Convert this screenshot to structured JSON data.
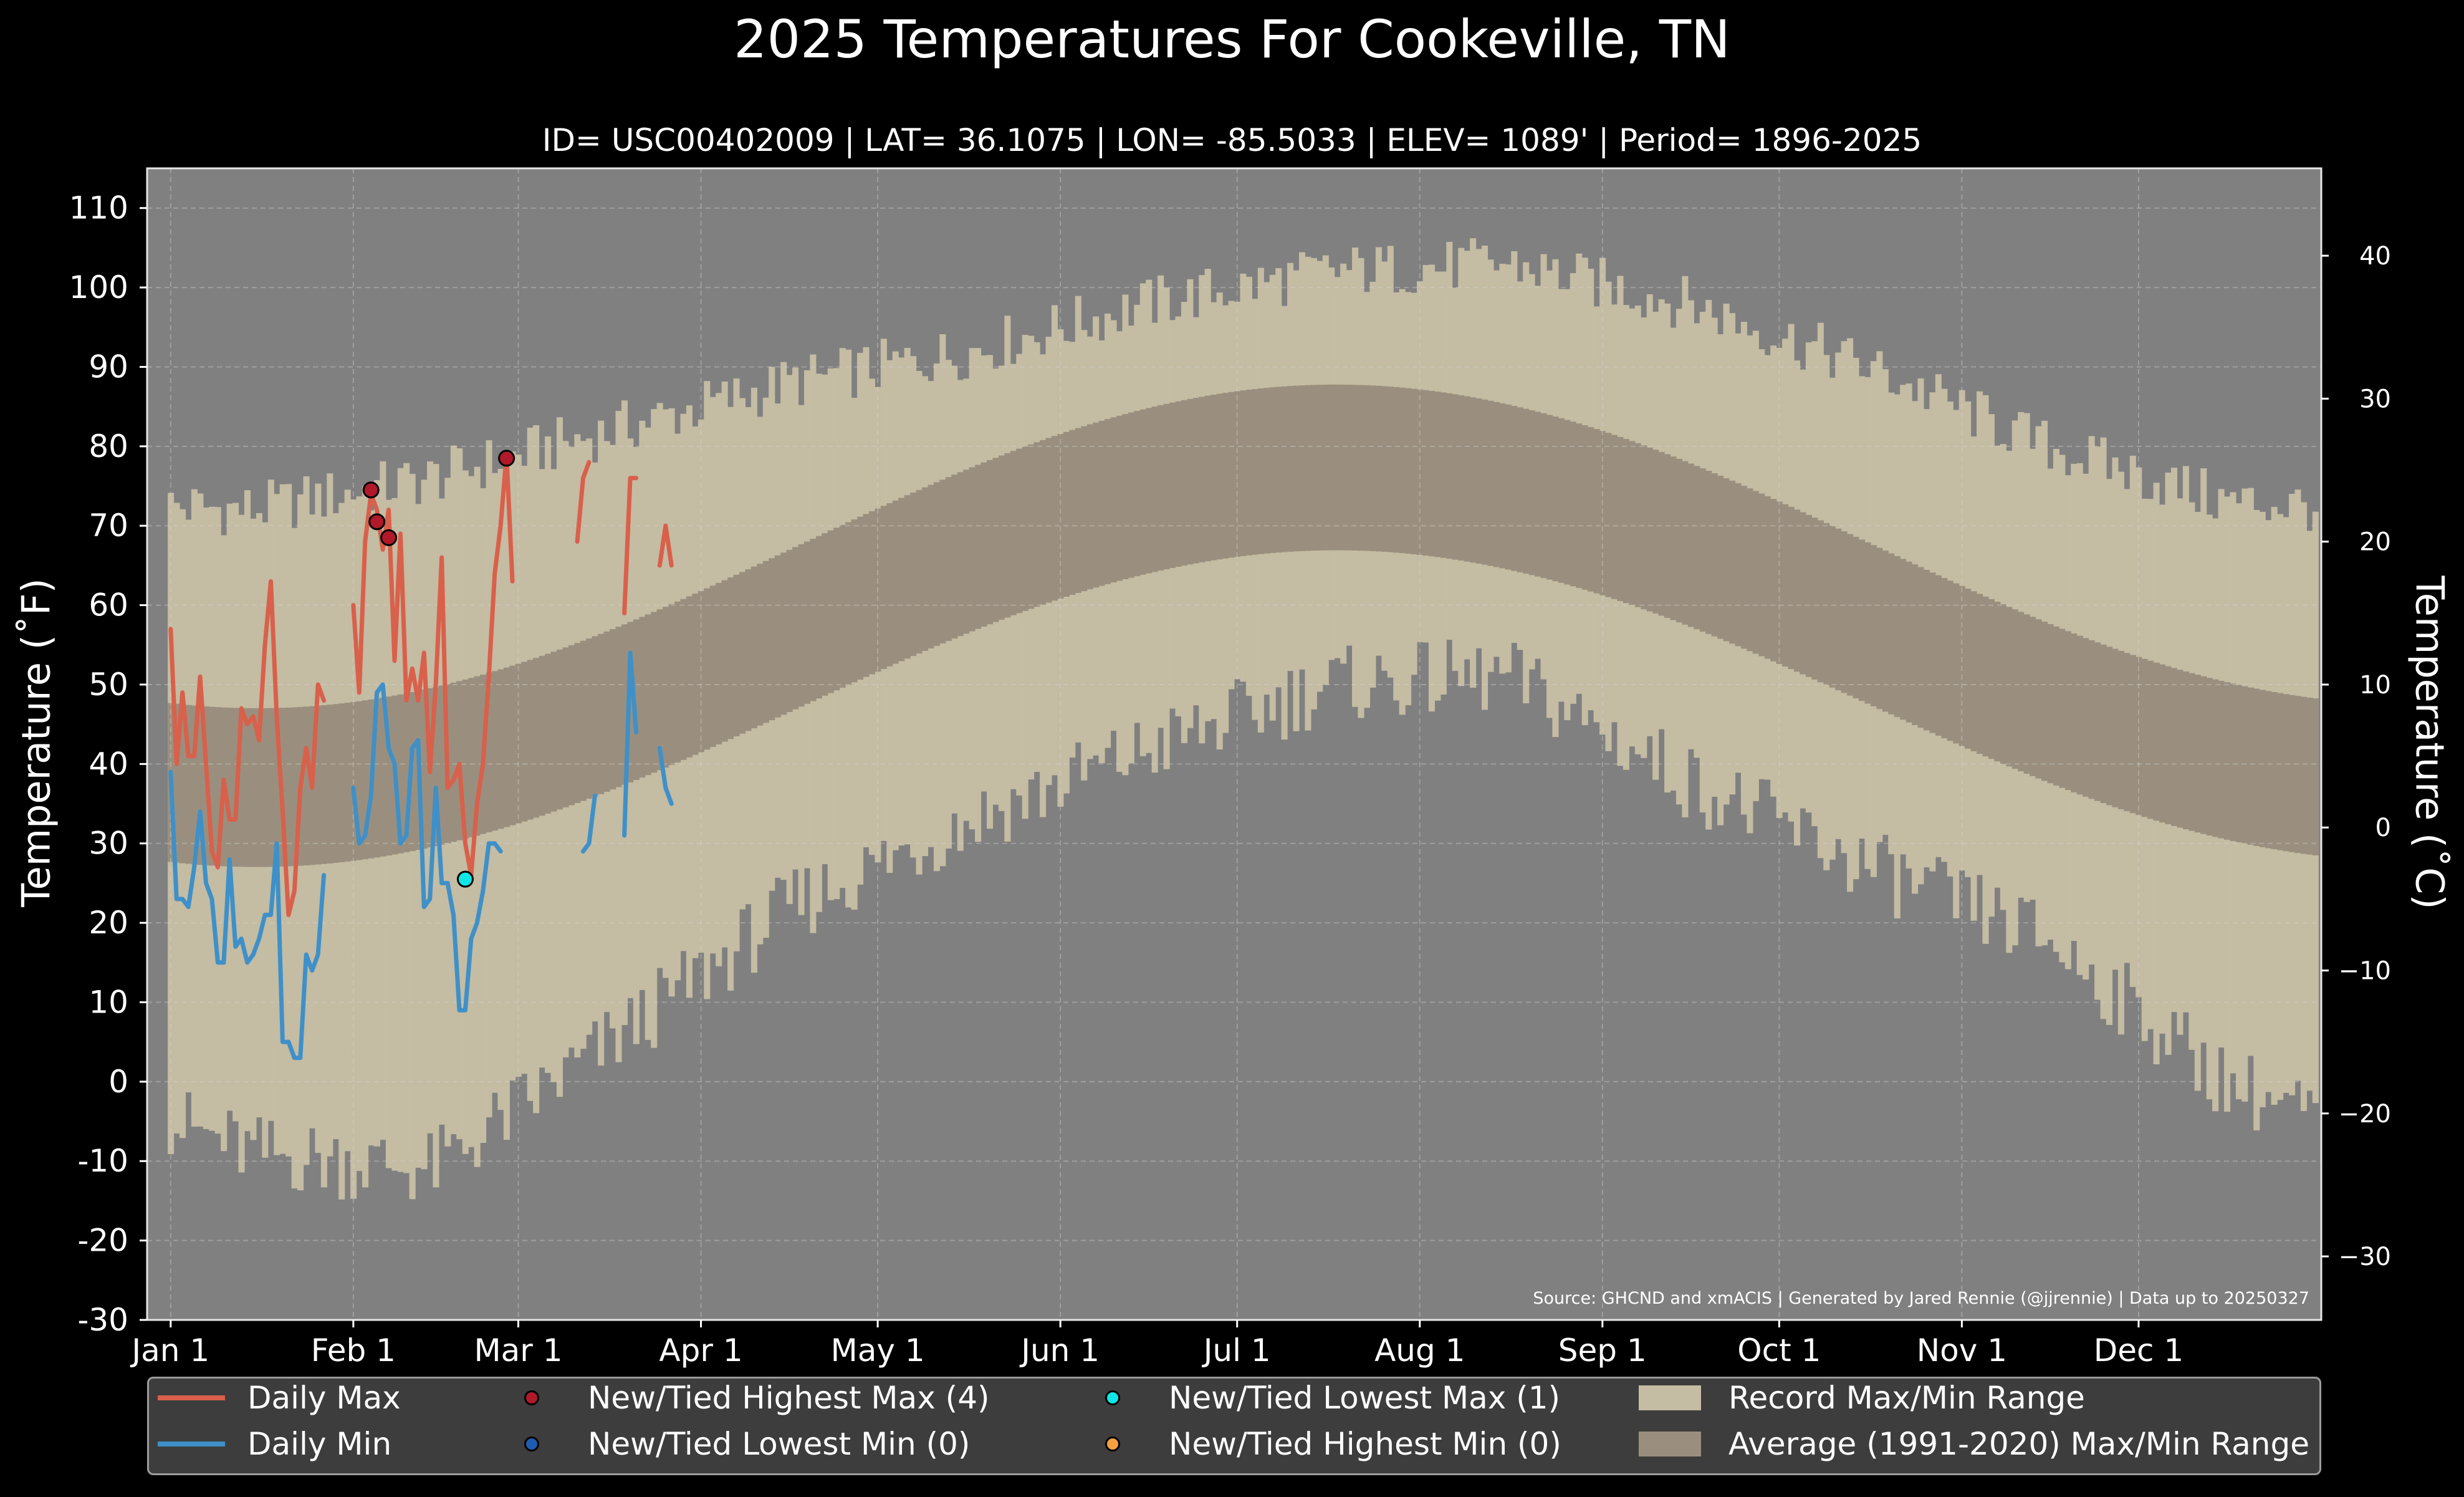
{
  "title": "2025 Temperatures For Cookeville, TN",
  "subtitle": "ID= USC00402009 | LAT= 36.1075 | LON= -85.5033 | ELEV= 1089' | Period= 1896-2025",
  "source_note": "Source: GHCND and xmACIS | Generated by Jared Rennie (@jjrennie) | Data up to 20250327",
  "colors": {
    "background": "#000000",
    "plot_background": "#808080",
    "record_range": "#c4bca3",
    "normal_range": "#9a8f7e",
    "daily_max": "#d9604b",
    "daily_min": "#3f90c8",
    "new_highest_max": "#b0192a",
    "new_lowest_min": "#1f5cb0",
    "new_lowest_max": "#10e6e6",
    "new_highest_min": "#f4a040"
  },
  "legend": {
    "daily_max": "Daily Max",
    "daily_min": "Daily Min",
    "new_highest_max": "New/Tied Highest Max (4)",
    "new_lowest_min": "New/Tied Lowest Min (0)",
    "new_lowest_max": "New/Tied Lowest Max (1)",
    "new_highest_min": "New/Tied Highest Min (0)",
    "record_range": "Record Max/Min Range",
    "normal_range": "Average (1991-2020) Max/Min Range"
  },
  "chart_data": {
    "type": "line",
    "title": "2025 Temperatures For Cookeville, TN",
    "ylabel": "Temperature ($^\\circ$F)",
    "ylabel_display": "Temperature (˚F)",
    "ylabel_right": "Temperature (˚C)",
    "ylim": [
      -30,
      115
    ],
    "yticks": [
      -30,
      -20,
      -10,
      0,
      10,
      20,
      30,
      40,
      50,
      60,
      70,
      80,
      90,
      100,
      110
    ],
    "ylim_right": [
      -34.44,
      46.11
    ],
    "yticks_right": [
      -30,
      -20,
      -10,
      0,
      10,
      20,
      30,
      40
    ],
    "yticks_right_labels": [
      "−30",
      "−20",
      "−10",
      "0",
      "10",
      "20",
      "30",
      "40"
    ],
    "x_tick_days": [
      1,
      32,
      60,
      91,
      121,
      152,
      182,
      213,
      244,
      274,
      305,
      335
    ],
    "x_tick_labels": [
      "Jan 1",
      "Feb 1",
      "Mar 1",
      "Apr 1",
      "May 1",
      "Jun 1",
      "Jul 1",
      "Aug 1",
      "Sep 1",
      "Oct 1",
      "Nov 1",
      "Dec 1"
    ],
    "xlim_days": [
      -3,
      366
    ],
    "grid": true,
    "legend_position": "bottom",
    "record_max_monthly": {
      "months": [
        "Jan",
        "Feb",
        "Mar",
        "Apr",
        "May",
        "Jun",
        "Jul",
        "Aug",
        "Sep",
        "Oct",
        "Nov",
        "Dec"
      ],
      "values": [
        72,
        76,
        82,
        88,
        92,
        98,
        102,
        103,
        98,
        90,
        80,
        73
      ]
    },
    "record_min_monthly": {
      "months": [
        "Jan",
        "Feb",
        "Mar",
        "Apr",
        "May",
        "Jun",
        "Jul",
        "Aug",
        "Sep",
        "Oct",
        "Nov",
        "Dec"
      ],
      "values": [
        -9,
        -11,
        5,
        22,
        33,
        42,
        50,
        51,
        38,
        27,
        18,
        0
      ]
    },
    "normal_max": {
      "jan": 47,
      "jul": 87.5,
      "dec": 48
    },
    "normal_min": {
      "jan": 27,
      "jul": 66.5,
      "dec": 28.5
    },
    "daily_max_segments": [
      {
        "start_day": 1,
        "values": [
          57,
          40,
          49,
          41,
          41,
          51,
          40,
          29,
          27,
          38,
          33,
          33,
          47,
          45,
          46,
          43,
          55,
          63,
          46,
          34,
          21,
          24,
          37,
          42,
          37,
          50,
          48
        ]
      },
      {
        "start_day": 32,
        "values": [
          60,
          49,
          68,
          74,
          72,
          67,
          72,
          53,
          69,
          48,
          52,
          48,
          54,
          39,
          50,
          66,
          37,
          38,
          40,
          30,
          26,
          35,
          40,
          51,
          64,
          70,
          79,
          63
        ]
      },
      {
        "start_day": 70,
        "values": [
          68,
          76,
          78
        ]
      },
      {
        "start_day": 78,
        "values": [
          59,
          76,
          76
        ]
      },
      {
        "start_day": 84,
        "values": [
          65,
          70,
          65
        ]
      }
    ],
    "daily_min_segments": [
      {
        "start_day": 1,
        "values": [
          39,
          23,
          23,
          22,
          27,
          34,
          25,
          23,
          15,
          15,
          28,
          17,
          18,
          15,
          16,
          18,
          21,
          21,
          30,
          5,
          5,
          3,
          3,
          16,
          14,
          16,
          26
        ]
      },
      {
        "start_day": 32,
        "values": [
          37,
          30,
          31,
          36,
          49,
          50,
          42,
          40,
          30,
          31,
          42,
          43,
          22,
          23,
          37,
          25,
          25,
          21,
          9,
          9,
          18,
          20,
          24,
          30,
          30,
          29
        ]
      },
      {
        "start_day": 71,
        "values": [
          29,
          30,
          36
        ]
      },
      {
        "start_day": 78,
        "values": [
          31,
          54,
          44
        ]
      },
      {
        "start_day": 84,
        "values": [
          42,
          37,
          35
        ]
      }
    ],
    "points": {
      "new_highest_max": [
        {
          "day": 35,
          "value": 74.5
        },
        {
          "day": 36,
          "value": 70.5
        },
        {
          "day": 38,
          "value": 68.5
        },
        {
          "day": 58,
          "value": 78.5
        }
      ],
      "new_lowest_max": [
        {
          "day": 51,
          "value": 25.5
        }
      ]
    }
  }
}
